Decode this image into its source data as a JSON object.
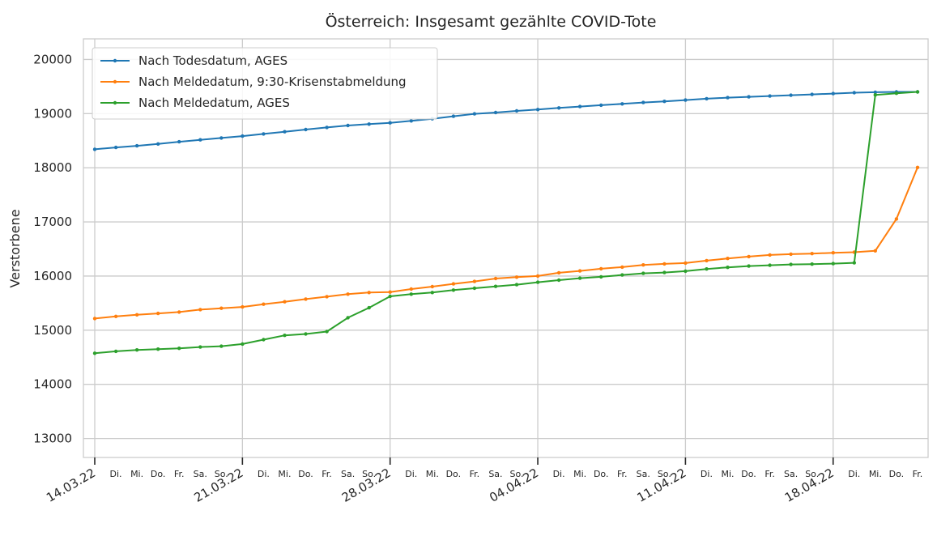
{
  "chart_data": {
    "type": "line",
    "title": "Österreich: Insgesamt gezählte COVID-Tote",
    "ylabel": "Verstorbene",
    "xlabel": "",
    "x_start": "14.03.22",
    "x_end": "22.04.22",
    "ylim": [
      12650,
      20380
    ],
    "yticks": [
      13000,
      14000,
      15000,
      16000,
      17000,
      18000,
      19000,
      20000
    ],
    "major_ticks": [
      {
        "date": "14.03.22",
        "label": "14.03.22"
      },
      {
        "date": "21.03.22",
        "label": "21.03.22"
      },
      {
        "date": "28.03.22",
        "label": "28.03.22"
      },
      {
        "date": "04.04.22",
        "label": "04.04.22"
      },
      {
        "date": "11.04.22",
        "label": "11.04.22"
      },
      {
        "date": "18.04.22",
        "label": "18.04.22"
      }
    ],
    "weekday_labels": [
      "Di.",
      "Mi.",
      "Do.",
      "Fr.",
      "Sa.",
      "So."
    ],
    "grid": true,
    "legend_position": "top-left",
    "series": [
      {
        "name": "Nach Todesdatum, AGES",
        "color": "#1f77b4",
        "values": [
          18340,
          18375,
          18405,
          18440,
          18480,
          18515,
          18550,
          18585,
          18625,
          18665,
          18705,
          18745,
          18780,
          18805,
          18830,
          18865,
          18905,
          18950,
          18995,
          19020,
          19050,
          19075,
          19105,
          19130,
          19155,
          19180,
          19205,
          19225,
          19250,
          19275,
          19295,
          19310,
          19325,
          19340,
          19355,
          19370,
          19385,
          19395,
          19400,
          19400
        ]
      },
      {
        "name": "Nach Meldedatum, 9:30-Krisenstabmeldung",
        "color": "#ff7f0e",
        "values": [
          15215,
          15255,
          15285,
          15310,
          15335,
          15380,
          15405,
          15430,
          15480,
          15525,
          15575,
          15620,
          15665,
          15695,
          15705,
          15760,
          15805,
          15855,
          15900,
          15955,
          15980,
          16000,
          16060,
          16095,
          16135,
          16165,
          16205,
          16225,
          16240,
          16285,
          16325,
          16360,
          16390,
          16405,
          16415,
          16430,
          16440,
          16465,
          17055,
          18005
        ]
      },
      {
        "name": "Nach Meldedatum, AGES",
        "color": "#2ca02c",
        "values": [
          14575,
          14610,
          14635,
          14650,
          14665,
          14690,
          14705,
          14745,
          14825,
          14905,
          14930,
          14975,
          15230,
          15415,
          15625,
          15665,
          15695,
          15740,
          15775,
          15810,
          15840,
          15885,
          15925,
          15960,
          15985,
          16020,
          16050,
          16065,
          16090,
          16130,
          16160,
          16185,
          16200,
          16215,
          16220,
          16230,
          16245,
          19345,
          19375,
          19400
        ]
      }
    ]
  }
}
